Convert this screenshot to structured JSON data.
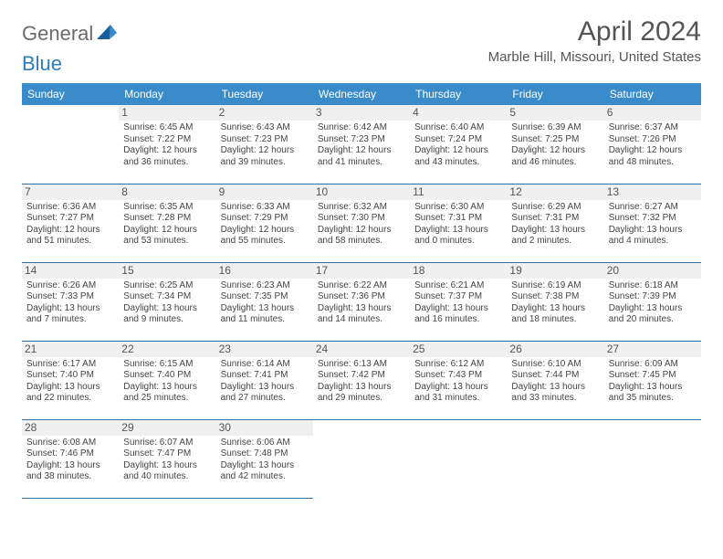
{
  "brand": {
    "part1": "General",
    "part2": "Blue"
  },
  "title": "April 2024",
  "location": "Marble Hill, Missouri, United States",
  "colors": {
    "header_bg": "#3a8bc9",
    "header_fg": "#ffffff",
    "row_border": "#2f6fa3",
    "brand_gray": "#6b6b6b",
    "brand_blue": "#2f7bbf",
    "text": "#444444",
    "daynum_bg": "#f0f0f0"
  },
  "weekdays": [
    "Sunday",
    "Monday",
    "Tuesday",
    "Wednesday",
    "Thursday",
    "Friday",
    "Saturday"
  ],
  "weeks": [
    [
      null,
      {
        "n": "1",
        "sr": "6:45 AM",
        "ss": "7:22 PM",
        "dl": "12 hours and 36 minutes."
      },
      {
        "n": "2",
        "sr": "6:43 AM",
        "ss": "7:23 PM",
        "dl": "12 hours and 39 minutes."
      },
      {
        "n": "3",
        "sr": "6:42 AM",
        "ss": "7:23 PM",
        "dl": "12 hours and 41 minutes."
      },
      {
        "n": "4",
        "sr": "6:40 AM",
        "ss": "7:24 PM",
        "dl": "12 hours and 43 minutes."
      },
      {
        "n": "5",
        "sr": "6:39 AM",
        "ss": "7:25 PM",
        "dl": "12 hours and 46 minutes."
      },
      {
        "n": "6",
        "sr": "6:37 AM",
        "ss": "7:26 PM",
        "dl": "12 hours and 48 minutes."
      }
    ],
    [
      {
        "n": "7",
        "sr": "6:36 AM",
        "ss": "7:27 PM",
        "dl": "12 hours and 51 minutes."
      },
      {
        "n": "8",
        "sr": "6:35 AM",
        "ss": "7:28 PM",
        "dl": "12 hours and 53 minutes."
      },
      {
        "n": "9",
        "sr": "6:33 AM",
        "ss": "7:29 PM",
        "dl": "12 hours and 55 minutes."
      },
      {
        "n": "10",
        "sr": "6:32 AM",
        "ss": "7:30 PM",
        "dl": "12 hours and 58 minutes."
      },
      {
        "n": "11",
        "sr": "6:30 AM",
        "ss": "7:31 PM",
        "dl": "13 hours and 0 minutes."
      },
      {
        "n": "12",
        "sr": "6:29 AM",
        "ss": "7:31 PM",
        "dl": "13 hours and 2 minutes."
      },
      {
        "n": "13",
        "sr": "6:27 AM",
        "ss": "7:32 PM",
        "dl": "13 hours and 4 minutes."
      }
    ],
    [
      {
        "n": "14",
        "sr": "6:26 AM",
        "ss": "7:33 PM",
        "dl": "13 hours and 7 minutes."
      },
      {
        "n": "15",
        "sr": "6:25 AM",
        "ss": "7:34 PM",
        "dl": "13 hours and 9 minutes."
      },
      {
        "n": "16",
        "sr": "6:23 AM",
        "ss": "7:35 PM",
        "dl": "13 hours and 11 minutes."
      },
      {
        "n": "17",
        "sr": "6:22 AM",
        "ss": "7:36 PM",
        "dl": "13 hours and 14 minutes."
      },
      {
        "n": "18",
        "sr": "6:21 AM",
        "ss": "7:37 PM",
        "dl": "13 hours and 16 minutes."
      },
      {
        "n": "19",
        "sr": "6:19 AM",
        "ss": "7:38 PM",
        "dl": "13 hours and 18 minutes."
      },
      {
        "n": "20",
        "sr": "6:18 AM",
        "ss": "7:39 PM",
        "dl": "13 hours and 20 minutes."
      }
    ],
    [
      {
        "n": "21",
        "sr": "6:17 AM",
        "ss": "7:40 PM",
        "dl": "13 hours and 22 minutes."
      },
      {
        "n": "22",
        "sr": "6:15 AM",
        "ss": "7:40 PM",
        "dl": "13 hours and 25 minutes."
      },
      {
        "n": "23",
        "sr": "6:14 AM",
        "ss": "7:41 PM",
        "dl": "13 hours and 27 minutes."
      },
      {
        "n": "24",
        "sr": "6:13 AM",
        "ss": "7:42 PM",
        "dl": "13 hours and 29 minutes."
      },
      {
        "n": "25",
        "sr": "6:12 AM",
        "ss": "7:43 PM",
        "dl": "13 hours and 31 minutes."
      },
      {
        "n": "26",
        "sr": "6:10 AM",
        "ss": "7:44 PM",
        "dl": "13 hours and 33 minutes."
      },
      {
        "n": "27",
        "sr": "6:09 AM",
        "ss": "7:45 PM",
        "dl": "13 hours and 35 minutes."
      }
    ],
    [
      {
        "n": "28",
        "sr": "6:08 AM",
        "ss": "7:46 PM",
        "dl": "13 hours and 38 minutes."
      },
      {
        "n": "29",
        "sr": "6:07 AM",
        "ss": "7:47 PM",
        "dl": "13 hours and 40 minutes."
      },
      {
        "n": "30",
        "sr": "6:06 AM",
        "ss": "7:48 PM",
        "dl": "13 hours and 42 minutes."
      },
      null,
      null,
      null,
      null
    ]
  ],
  "labels": {
    "sunrise": "Sunrise:",
    "sunset": "Sunset:",
    "daylight": "Daylight:"
  }
}
